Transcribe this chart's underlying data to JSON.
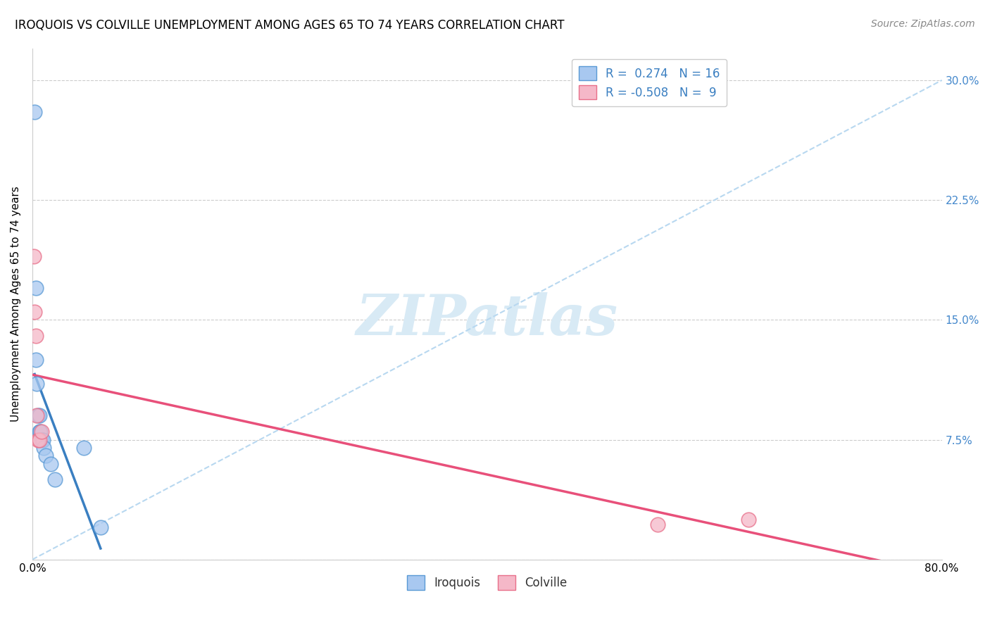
{
  "title": "IROQUOIS VS COLVILLE UNEMPLOYMENT AMONG AGES 65 TO 74 YEARS CORRELATION CHART",
  "source": "Source: ZipAtlas.com",
  "ylabel": "Unemployment Among Ages 65 to 74 years",
  "xlim": [
    0.0,
    0.8
  ],
  "ylim": [
    0.0,
    0.32
  ],
  "xticks": [
    0.0,
    0.1,
    0.2,
    0.3,
    0.4,
    0.5,
    0.6,
    0.7,
    0.8
  ],
  "yticks_right": [
    0.0,
    0.075,
    0.15,
    0.225,
    0.3
  ],
  "yticklabels_right": [
    "",
    "7.5%",
    "15.0%",
    "22.5%",
    "30.0%"
  ],
  "iroquois_color": "#A8C8F0",
  "colville_color": "#F5B8C8",
  "iroquois_edge_color": "#5A9AD5",
  "colville_edge_color": "#E8708A",
  "iroquois_line_color": "#3A7FC1",
  "colville_line_color": "#E8507A",
  "dashed_line_color": "#B8D8F0",
  "R_iroquois": 0.274,
  "N_iroquois": 16,
  "R_colville": -0.508,
  "N_colville": 9,
  "iroquois_x": [
    0.002,
    0.003,
    0.003,
    0.004,
    0.005,
    0.006,
    0.006,
    0.007,
    0.008,
    0.009,
    0.01,
    0.012,
    0.016,
    0.02,
    0.045,
    0.06
  ],
  "iroquois_y": [
    0.28,
    0.17,
    0.125,
    0.11,
    0.09,
    0.09,
    0.08,
    0.08,
    0.075,
    0.075,
    0.07,
    0.065,
    0.06,
    0.05,
    0.07,
    0.02
  ],
  "colville_x": [
    0.001,
    0.002,
    0.003,
    0.004,
    0.005,
    0.006,
    0.008,
    0.55,
    0.63
  ],
  "colville_y": [
    0.19,
    0.155,
    0.14,
    0.09,
    0.075,
    0.075,
    0.08,
    0.022,
    0.025
  ],
  "background_color": "#FFFFFF",
  "grid_color": "#CCCCCC",
  "watermark": "ZIPatlas",
  "watermark_color": "#D8EAF5"
}
